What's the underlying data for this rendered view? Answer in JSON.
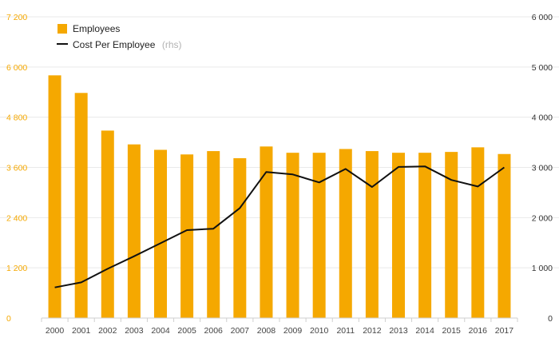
{
  "chart_data": {
    "type": "bar+line",
    "categories": [
      "2000",
      "2001",
      "2002",
      "2003",
      "2004",
      "2005",
      "2006",
      "2007",
      "2008",
      "2009",
      "2010",
      "2011",
      "2012",
      "2013",
      "2014",
      "2015",
      "2016",
      "2017"
    ],
    "series": [
      {
        "name": "Employees",
        "type": "bar",
        "axis": "left",
        "values": [
          5800,
          5380,
          4480,
          4150,
          4020,
          3910,
          3990,
          3820,
          4100,
          3950,
          3950,
          4040,
          3990,
          3950,
          3950,
          3970,
          4080,
          3920
        ]
      },
      {
        "name": "Cost Per Employee",
        "type": "line",
        "axis": "right",
        "values": [
          610,
          710,
          980,
          1230,
          1490,
          1750,
          1780,
          2190,
          2910,
          2860,
          2700,
          2970,
          2610,
          3010,
          3020,
          2750,
          2620,
          3000
        ]
      }
    ],
    "left_axis": {
      "min": 0,
      "max": 7200,
      "ticks": [
        "0",
        "1 200",
        "2 400",
        "3 600",
        "4 800",
        "6 000",
        "7 200"
      ],
      "tick_values": [
        0,
        1200,
        2400,
        3600,
        4800,
        6000,
        7200
      ]
    },
    "right_axis": {
      "min": 0,
      "max": 6000,
      "ticks": [
        "0",
        "1 000",
        "2 000",
        "3 000",
        "4 000",
        "5 000",
        "6 000"
      ],
      "tick_values": [
        0,
        1000,
        2000,
        3000,
        4000,
        5000,
        6000
      ]
    },
    "legend": {
      "placement": "top-left",
      "items": [
        {
          "label": "Employees",
          "note": ""
        },
        {
          "label": "Cost Per Employee",
          "note": "(rhs)"
        }
      ]
    },
    "colors": {
      "bar": "#f5a800",
      "line": "#111111",
      "left_tick": "#f5a800",
      "right_tick": "#333333"
    },
    "grid": true
  }
}
